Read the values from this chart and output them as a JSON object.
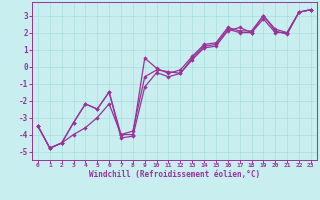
{
  "xlabel": "Windchill (Refroidissement éolien,°C)",
  "bg_color": "#c8eef0",
  "line_color": "#993399",
  "grid_color": "#aadddd",
  "xlim": [
    -0.5,
    23.5
  ],
  "ylim": [
    -5.5,
    3.8
  ],
  "yticks": [
    -5,
    -4,
    -3,
    -2,
    -1,
    0,
    1,
    2,
    3
  ],
  "xticks": [
    0,
    1,
    2,
    3,
    4,
    5,
    6,
    7,
    8,
    9,
    10,
    11,
    12,
    13,
    14,
    15,
    16,
    17,
    18,
    19,
    20,
    21,
    22,
    23
  ],
  "line1_x": [
    0,
    1,
    2,
    3,
    4,
    5,
    6,
    7,
    8,
    9,
    10,
    11,
    12,
    13,
    14,
    15,
    16,
    17,
    18,
    19,
    20,
    21,
    22,
    23
  ],
  "line1_y": [
    -3.5,
    -4.8,
    -4.5,
    -4.0,
    -3.6,
    -3.0,
    -2.2,
    -4.0,
    -3.8,
    -0.6,
    -0.2,
    -0.3,
    -0.4,
    0.5,
    1.2,
    1.3,
    2.2,
    2.0,
    2.0,
    2.8,
    2.0,
    2.0,
    3.2,
    3.35
  ],
  "line2_x": [
    0,
    1,
    2,
    3,
    4,
    5,
    6,
    7,
    8,
    9,
    10,
    11,
    12,
    13,
    14,
    15,
    16,
    17,
    18,
    19,
    20,
    21,
    22,
    23
  ],
  "line2_y": [
    -3.5,
    -4.8,
    -4.5,
    -3.3,
    -2.2,
    -2.5,
    -1.5,
    -4.0,
    -4.0,
    0.5,
    -0.1,
    -0.4,
    -0.2,
    0.6,
    1.3,
    1.4,
    2.3,
    2.1,
    2.1,
    3.0,
    2.2,
    2.0,
    3.2,
    3.35
  ],
  "line3_x": [
    0,
    1,
    2,
    3,
    4,
    5,
    6,
    7,
    8,
    9,
    10,
    11,
    12,
    13,
    14,
    15,
    16,
    17,
    18,
    19,
    20,
    21,
    22,
    23
  ],
  "line3_y": [
    -3.5,
    -4.8,
    -4.5,
    -3.3,
    -2.2,
    -2.5,
    -1.5,
    -4.2,
    -4.1,
    -1.2,
    -0.35,
    -0.6,
    -0.4,
    0.4,
    1.1,
    1.2,
    2.1,
    2.3,
    2.0,
    3.0,
    2.1,
    1.9,
    3.2,
    3.35
  ]
}
